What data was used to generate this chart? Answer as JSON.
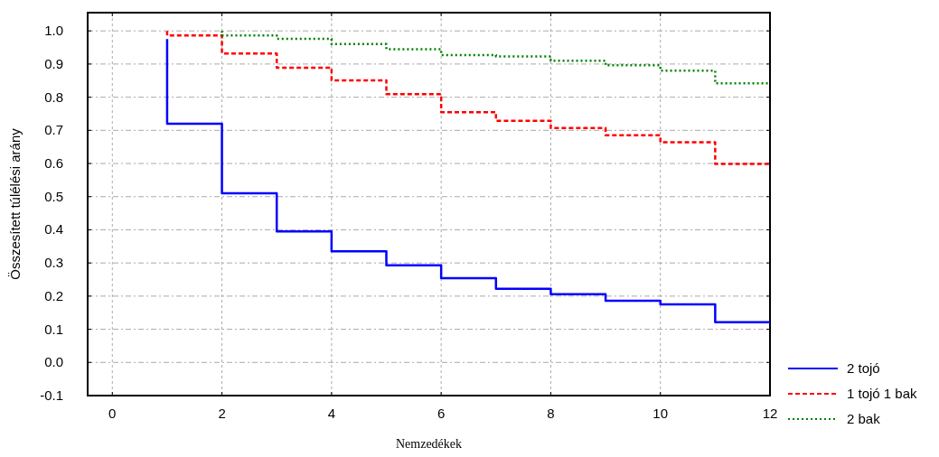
{
  "chart_data": {
    "type": "step",
    "xlabel": "Nemzedékek",
    "ylabel": "Összesített túlélési arány",
    "xlim": [
      -0.45,
      12
    ],
    "ylim": [
      -0.1,
      1.055
    ],
    "xticks": [
      0,
      2,
      4,
      6,
      8,
      10,
      12
    ],
    "yticks": [
      {
        "value": -0.1,
        "label": "-0.1"
      },
      {
        "value": 0,
        "label": "0.0"
      },
      {
        "value": 0.1,
        "label": "0.1"
      },
      {
        "value": 0.2,
        "label": "0.2"
      },
      {
        "value": 0.3,
        "label": "0.3"
      },
      {
        "value": 0.4,
        "label": "0.4"
      },
      {
        "value": 0.5,
        "label": "0.5"
      },
      {
        "value": 0.6,
        "label": "0.6"
      },
      {
        "value": 0.7,
        "label": "0.7"
      },
      {
        "value": 0.8,
        "label": "0.8"
      },
      {
        "value": 0.9,
        "label": "0.9"
      },
      {
        "value": 1,
        "label": "1.0"
      }
    ],
    "grid": true,
    "legend": "right",
    "series": [
      {
        "name": "2 tojó",
        "color": "#0000ff",
        "line_style": "solid",
        "x": [
          1,
          1,
          2,
          3,
          4,
          5,
          6,
          7,
          8,
          9,
          10,
          11,
          12
        ],
        "values": [
          0.975,
          0.72,
          0.51,
          0.395,
          0.335,
          0.293,
          0.254,
          0.222,
          0.206,
          0.186,
          0.175,
          0.121,
          0.121
        ]
      },
      {
        "name": "1 tojó 1 bak",
        "color": "#ff0000",
        "line_style": "dashed",
        "x": [
          1,
          1,
          2,
          3,
          4,
          5,
          6,
          7,
          8,
          9,
          10,
          11,
          12
        ],
        "values": [
          1.0,
          0.986,
          0.932,
          0.889,
          0.851,
          0.809,
          0.755,
          0.729,
          0.707,
          0.685,
          0.664,
          0.599,
          0.599
        ]
      },
      {
        "name": "2 bak",
        "color": "#008000",
        "line_style": "dotted",
        "x": [
          2,
          2,
          3,
          4,
          5,
          6,
          7,
          8,
          9,
          10,
          11,
          12
        ],
        "values": [
          1.0,
          0.986,
          0.976,
          0.96,
          0.945,
          0.927,
          0.923,
          0.91,
          0.896,
          0.88,
          0.842,
          0.842
        ]
      }
    ]
  }
}
